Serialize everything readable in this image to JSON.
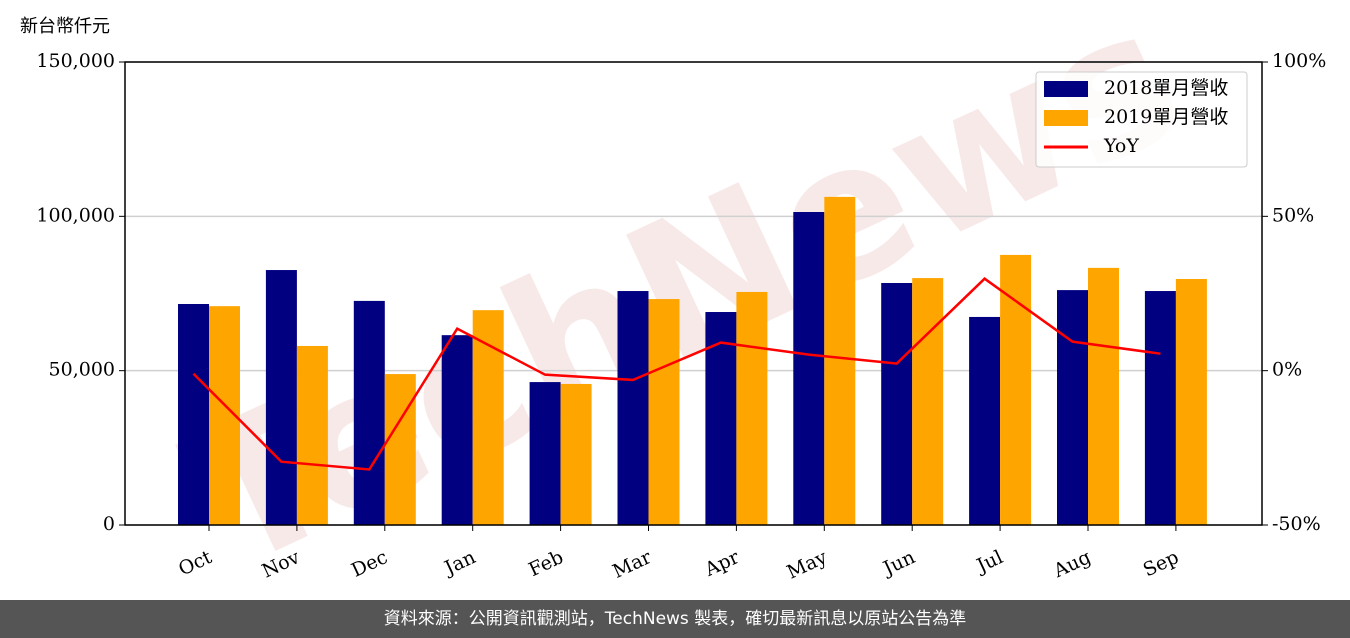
{
  "chart_data": {
    "type": "bar_line",
    "y_axis_label": "新台幣仟元",
    "categories": [
      "Oct",
      "Nov",
      "Dec",
      "Jan",
      "Feb",
      "Mar",
      "Apr",
      "May",
      "Jun",
      "Jul",
      "Aug",
      "Sep"
    ],
    "series": [
      {
        "name": "2018單月營收",
        "color": "#000080",
        "values": [
          71600,
          82600,
          72600,
          61500,
          46300,
          75800,
          69000,
          101400,
          78400,
          67400,
          76100,
          75800
        ]
      },
      {
        "name": "2019單月營收",
        "color": "#ffa500",
        "values": [
          70900,
          58000,
          48900,
          69600,
          45700,
          73200,
          75500,
          106300,
          80000,
          87500,
          83300,
          79700
        ]
      },
      {
        "name": "YoY",
        "color": "#ff0000",
        "axis": "y2",
        "values": [
          -1,
          -29.5,
          -32,
          13.6,
          -1.3,
          -3,
          9.1,
          5.2,
          2.3,
          29.8,
          9.4,
          5.5
        ]
      }
    ],
    "ylim": [
      0,
      150000
    ],
    "yticks": [
      0,
      {
        "value": 50000,
        "label": "50,000"
      },
      {
        "value": 100000,
        "label": "100,000"
      },
      {
        "value": 150000,
        "label": "150,000"
      }
    ],
    "y2lim": [
      -50,
      100
    ],
    "y2ticks": [
      {
        "value": -50,
        "label": "-50%"
      },
      {
        "value": 0,
        "label": "0%"
      },
      {
        "value": 50,
        "label": "50%"
      },
      {
        "value": 100,
        "label": "100%"
      }
    ],
    "grid": true,
    "legend": "upper right",
    "watermark": "TechNews"
  },
  "footer": {
    "source": "資料來源：公開資訊觀測站，TechNews 製表，確切最新訊息以原站公告為準"
  }
}
